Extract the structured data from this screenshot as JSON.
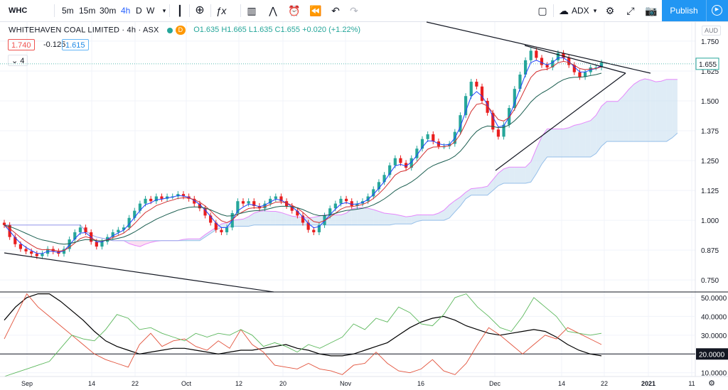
{
  "toolbar": {
    "symbol": "WHC",
    "intervals": [
      "5m",
      "15m",
      "30m",
      "4h",
      "D",
      "W"
    ],
    "active_interval": "4h",
    "compare_label": "ADX",
    "publish_label": "Publish",
    "icons": [
      "bar-style-icon",
      "add-icon",
      "fx-icon",
      "templates-icon",
      "indicators-icon",
      "replay-icon",
      "undo-icon",
      "layout-icon",
      "cloud-icon",
      "settings-icon",
      "fullscreen-icon",
      "camera-icon"
    ]
  },
  "legend": {
    "title": "WHITEHAVEN COAL LIMITED · 4h · ASX",
    "badge": "D",
    "ohlc": "O1.635 H1.665 L1.635 C1.655 +0.020 (+1.22%)",
    "box1": "1.740",
    "diff": "-0.125",
    "box2": "1.615",
    "indicators_count": "4"
  },
  "currency": "AUD",
  "chart_data": [
    {
      "type": "candlestick",
      "price_axis": {
        "ticks": [
          "1.750",
          "1.625",
          "1.500",
          "1.375",
          "1.250",
          "1.125",
          "1.000",
          "0.875",
          "0.750"
        ],
        "range": [
          0.7,
          1.83
        ],
        "last_price": "1.655"
      },
      "time_axis": {
        "ticks": [
          "Sep",
          "14",
          "22",
          "Oct",
          "12",
          "20",
          "Nov",
          "16",
          "Dec",
          "14",
          "22",
          "2021",
          "11"
        ]
      },
      "colors": {
        "up": "#26a69a",
        "down": "#e91e1e",
        "cloud_bear": "#f7c6e6",
        "cloud_bull": "#c5dcef"
      },
      "close_series": [
        0.98,
        0.93,
        0.9,
        0.88,
        0.87,
        0.86,
        0.85,
        0.86,
        0.88,
        0.87,
        0.86,
        0.88,
        0.92,
        0.95,
        0.97,
        0.95,
        0.91,
        0.89,
        0.91,
        0.93,
        0.95,
        0.96,
        0.97,
        1.01,
        1.04,
        1.07,
        1.09,
        1.08,
        1.1,
        1.09,
        1.1,
        1.1,
        1.11,
        1.1,
        1.09,
        1.07,
        1.05,
        1.02,
        0.99,
        0.96,
        0.95,
        0.97,
        1.03,
        1.08,
        1.07,
        1.08,
        1.06,
        1.05,
        1.07,
        1.09,
        1.1,
        1.08,
        1.06,
        1.04,
        1.02,
        0.99,
        0.96,
        0.95,
        0.98,
        1.02,
        1.05,
        1.07,
        1.09,
        1.08,
        1.06,
        1.07,
        1.08,
        1.1,
        1.13,
        1.16,
        1.19,
        1.23,
        1.26,
        1.24,
        1.22,
        1.26,
        1.3,
        1.34,
        1.36,
        1.33,
        1.31,
        1.31,
        1.32,
        1.37,
        1.44,
        1.52,
        1.58,
        1.56,
        1.5,
        1.45,
        1.38,
        1.35,
        1.4,
        1.47,
        1.55,
        1.61,
        1.67,
        1.71,
        1.68,
        1.65,
        1.64,
        1.67,
        1.7,
        1.68,
        1.65,
        1.62,
        1.6,
        1.62,
        1.64,
        1.64,
        1.66
      ]
    },
    {
      "type": "line",
      "name": "ADX",
      "value_axis": {
        "ticks": [
          "50.0000",
          "40.0000",
          "30.0000",
          "20.0000",
          "10.0000"
        ],
        "range": [
          8,
          53
        ],
        "level": "20.0000"
      },
      "series": [
        {
          "color": "#000000",
          "values": [
            38,
            45,
            50,
            52,
            52,
            48,
            43,
            38,
            32,
            27,
            24,
            22,
            20,
            21,
            22,
            23,
            23,
            22,
            21,
            20,
            21,
            22,
            22,
            23,
            24,
            25,
            23,
            22,
            20,
            19,
            19,
            20,
            22,
            24,
            26,
            30,
            34,
            37,
            39,
            40,
            38,
            35,
            33,
            31,
            30,
            31,
            32,
            33,
            32,
            29,
            25,
            22,
            20,
            19
          ]
        },
        {
          "color": "#e2513a",
          "values": [
            28,
            40,
            52,
            45,
            40,
            35,
            30,
            25,
            20,
            17,
            15,
            13,
            25,
            31,
            24,
            27,
            28,
            24,
            22,
            27,
            23,
            33,
            25,
            21,
            14,
            13,
            12,
            15,
            12,
            11,
            9,
            14,
            15,
            21,
            15,
            11,
            10,
            12,
            17,
            11,
            9,
            15,
            25,
            34,
            30,
            25,
            20,
            25,
            30,
            28,
            34,
            31,
            28,
            25
          ]
        },
        {
          "color": "#5cb85c",
          "values": [
            8,
            10,
            12,
            14,
            16,
            23,
            30,
            28,
            27,
            33,
            41,
            39,
            33,
            34,
            31,
            29,
            27,
            31,
            29,
            31,
            30,
            33,
            30,
            24,
            26,
            24,
            21,
            25,
            23,
            26,
            29,
            36,
            33,
            39,
            37,
            45,
            42,
            36,
            35,
            41,
            50,
            52,
            45,
            40,
            34,
            32,
            40,
            50,
            45,
            40,
            32,
            31,
            30,
            31
          ]
        }
      ]
    }
  ]
}
